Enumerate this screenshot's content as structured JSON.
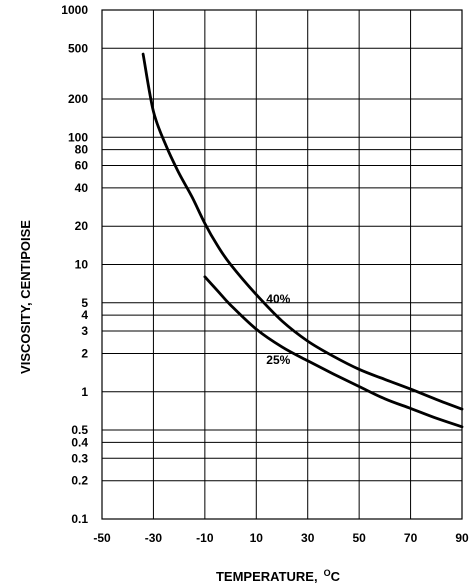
{
  "chart_data": {
    "type": "line",
    "xlabel": "TEMPERATURE,",
    "xlabel_unit_sup": "O",
    "xlabel_unit": "C",
    "ylabel": "VISCOSITY, CENTIPOISE",
    "xlim": [
      -50,
      90
    ],
    "ylim": [
      0.1,
      1000
    ],
    "y_scale": "log",
    "x_ticks": [
      -50,
      -30,
      -10,
      10,
      30,
      50,
      70,
      90
    ],
    "x_tick_labels": [
      "-50",
      "-30",
      "-10",
      "10",
      "30",
      "50",
      "70",
      "90"
    ],
    "y_ticks": [
      1000,
      500,
      200,
      100,
      80,
      60,
      40,
      20,
      10,
      5,
      4,
      3,
      2,
      1,
      0.5,
      0.4,
      0.3,
      0.2,
      0.1
    ],
    "y_tick_labels": [
      "1000",
      "500",
      "200",
      "100",
      "80",
      "60",
      "40",
      "20",
      "10",
      "5",
      "4",
      "3",
      "2",
      "1",
      "0.5",
      "0.4",
      "0.3",
      "0.2",
      "0.1"
    ],
    "grid": "vertical and horizontal at ticks",
    "series": [
      {
        "name": "40%",
        "x": [
          -34,
          -30,
          -25,
          -20,
          -15,
          -10,
          -5,
          0,
          10,
          20,
          30,
          40,
          50,
          60,
          70,
          80,
          90
        ],
        "y": [
          450,
          160,
          85,
          52,
          34,
          21,
          14,
          10,
          5.8,
          3.6,
          2.5,
          1.9,
          1.5,
          1.25,
          1.05,
          0.87,
          0.73
        ]
      },
      {
        "name": "25%",
        "x": [
          -10,
          -5,
          0,
          10,
          20,
          30,
          40,
          50,
          60,
          70,
          80,
          90
        ],
        "y": [
          8,
          6.2,
          4.8,
          3.1,
          2.25,
          1.75,
          1.38,
          1.1,
          0.88,
          0.74,
          0.62,
          0.53
        ]
      }
    ],
    "series_label_style": "inline text next to curves",
    "colors": {
      "line": "#000000",
      "grid": "#000000",
      "background": "#ffffff"
    }
  }
}
